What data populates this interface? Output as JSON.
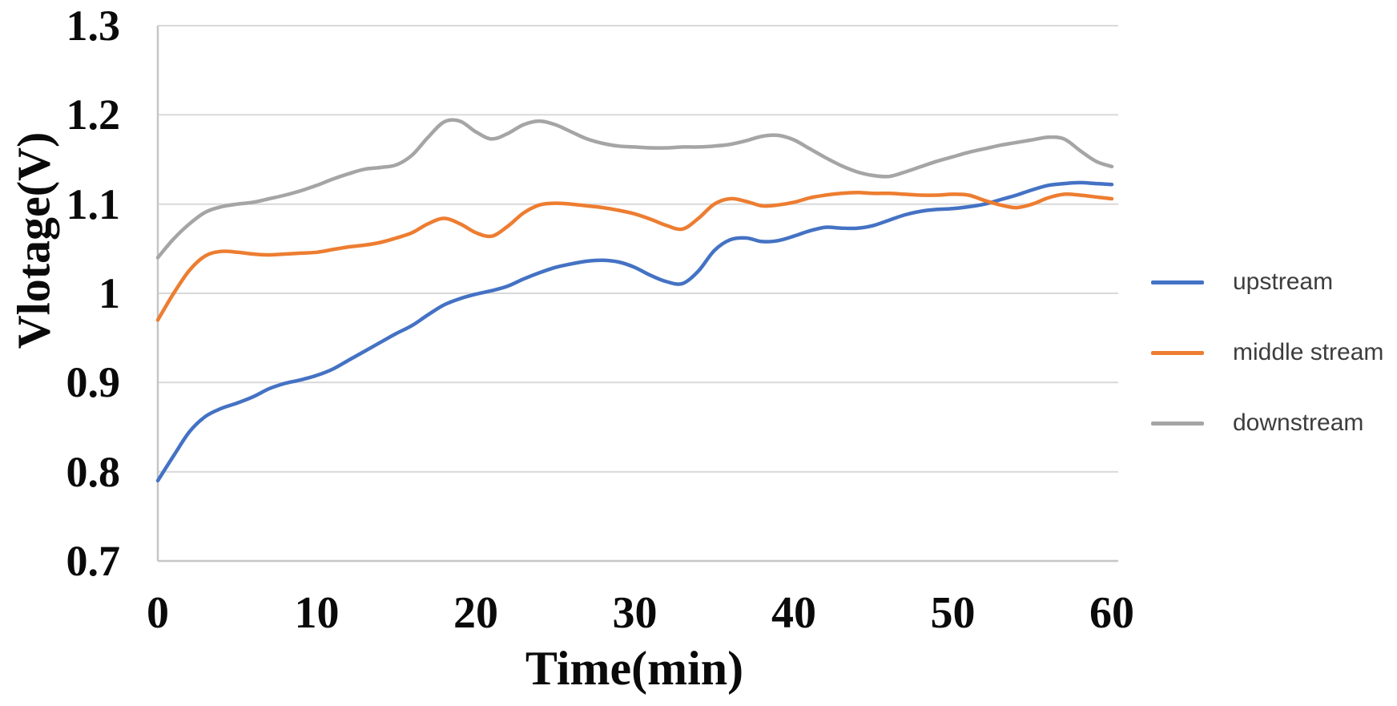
{
  "chart_data": {
    "type": "line",
    "title": "",
    "xlabel": "Time(min)",
    "ylabel": "Vlotage(V)",
    "xlim": [
      0,
      60
    ],
    "ylim": [
      0.7,
      1.3
    ],
    "x_ticks": [
      0,
      10,
      20,
      30,
      40,
      50,
      60
    ],
    "x_tick_labels": [
      "0",
      "10",
      "20",
      "30",
      "40",
      "50",
      "60"
    ],
    "y_ticks": [
      0.7,
      0.8,
      0.9,
      1.0,
      1.1,
      1.2,
      1.3
    ],
    "y_tick_labels": [
      "0.7",
      "0.8",
      "0.9",
      "1",
      "1.1",
      "1.2",
      "1.3"
    ],
    "grid": "horizontal",
    "smooth": true,
    "legend_position": "right",
    "background_color": "#ffffff",
    "gridline_color": "#d9d9d9",
    "axis_line_color": "#c6c6c6",
    "tick_label_color": "#0a0a0a",
    "legend_text_color": "#3d3d3d",
    "series": [
      {
        "name": "upstream",
        "color": "#4472c4",
        "points": [
          [
            0,
            0.79
          ],
          [
            1,
            0.818
          ],
          [
            2,
            0.845
          ],
          [
            3,
            0.862
          ],
          [
            4,
            0.871
          ],
          [
            5,
            0.877
          ],
          [
            6,
            0.884
          ],
          [
            7,
            0.893
          ],
          [
            8,
            0.899
          ],
          [
            9,
            0.903
          ],
          [
            10,
            0.908
          ],
          [
            11,
            0.915
          ],
          [
            12,
            0.925
          ],
          [
            13,
            0.935
          ],
          [
            14,
            0.945
          ],
          [
            15,
            0.955
          ],
          [
            16,
            0.964
          ],
          [
            17,
            0.976
          ],
          [
            18,
            0.987
          ],
          [
            19,
            0.994
          ],
          [
            20,
            0.999
          ],
          [
            21,
            1.003
          ],
          [
            22,
            1.008
          ],
          [
            23,
            1.016
          ],
          [
            24,
            1.023
          ],
          [
            25,
            1.029
          ],
          [
            26,
            1.033
          ],
          [
            27,
            1.036
          ],
          [
            28,
            1.037
          ],
          [
            29,
            1.035
          ],
          [
            30,
            1.029
          ],
          [
            31,
            1.02
          ],
          [
            32,
            1.013
          ],
          [
            33,
            1.011
          ],
          [
            34,
            1.025
          ],
          [
            35,
            1.048
          ],
          [
            36,
            1.06
          ],
          [
            37,
            1.062
          ],
          [
            38,
            1.058
          ],
          [
            39,
            1.059
          ],
          [
            40,
            1.064
          ],
          [
            41,
            1.07
          ],
          [
            42,
            1.074
          ],
          [
            43,
            1.073
          ],
          [
            44,
            1.073
          ],
          [
            45,
            1.076
          ],
          [
            46,
            1.082
          ],
          [
            47,
            1.088
          ],
          [
            48,
            1.092
          ],
          [
            49,
            1.094
          ],
          [
            50,
            1.095
          ],
          [
            51,
            1.097
          ],
          [
            52,
            1.1
          ],
          [
            53,
            1.105
          ],
          [
            54,
            1.11
          ],
          [
            55,
            1.116
          ],
          [
            56,
            1.121
          ],
          [
            57,
            1.123
          ],
          [
            58,
            1.124
          ],
          [
            59,
            1.123
          ],
          [
            60,
            1.122
          ]
        ]
      },
      {
        "name": "middle stream",
        "color": "#ed7d31",
        "points": [
          [
            0,
            0.97
          ],
          [
            1,
            1.0
          ],
          [
            2,
            1.026
          ],
          [
            3,
            1.042
          ],
          [
            4,
            1.047
          ],
          [
            5,
            1.046
          ],
          [
            6,
            1.044
          ],
          [
            7,
            1.043
          ],
          [
            8,
            1.044
          ],
          [
            9,
            1.045
          ],
          [
            10,
            1.046
          ],
          [
            11,
            1.049
          ],
          [
            12,
            1.052
          ],
          [
            13,
            1.054
          ],
          [
            14,
            1.057
          ],
          [
            15,
            1.062
          ],
          [
            16,
            1.068
          ],
          [
            17,
            1.078
          ],
          [
            18,
            1.084
          ],
          [
            19,
            1.078
          ],
          [
            20,
            1.068
          ],
          [
            21,
            1.064
          ],
          [
            22,
            1.075
          ],
          [
            23,
            1.09
          ],
          [
            24,
            1.099
          ],
          [
            25,
            1.101
          ],
          [
            26,
            1.1
          ],
          [
            27,
            1.098
          ],
          [
            28,
            1.096
          ],
          [
            29,
            1.093
          ],
          [
            30,
            1.089
          ],
          [
            31,
            1.083
          ],
          [
            32,
            1.076
          ],
          [
            33,
            1.072
          ],
          [
            34,
            1.084
          ],
          [
            35,
            1.1
          ],
          [
            36,
            1.106
          ],
          [
            37,
            1.103
          ],
          [
            38,
            1.098
          ],
          [
            39,
            1.099
          ],
          [
            40,
            1.102
          ],
          [
            41,
            1.107
          ],
          [
            42,
            1.11
          ],
          [
            43,
            1.112
          ],
          [
            44,
            1.113
          ],
          [
            45,
            1.112
          ],
          [
            46,
            1.112
          ],
          [
            47,
            1.111
          ],
          [
            48,
            1.11
          ],
          [
            49,
            1.11
          ],
          [
            50,
            1.111
          ],
          [
            51,
            1.11
          ],
          [
            52,
            1.104
          ],
          [
            53,
            1.099
          ],
          [
            54,
            1.096
          ],
          [
            55,
            1.1
          ],
          [
            56,
            1.107
          ],
          [
            57,
            1.111
          ],
          [
            58,
            1.11
          ],
          [
            59,
            1.108
          ],
          [
            60,
            1.106
          ]
        ]
      },
      {
        "name": "downstream",
        "color": "#a5a5a5",
        "points": [
          [
            0,
            1.04
          ],
          [
            1,
            1.061
          ],
          [
            2,
            1.078
          ],
          [
            3,
            1.091
          ],
          [
            4,
            1.097
          ],
          [
            5,
            1.1
          ],
          [
            6,
            1.102
          ],
          [
            7,
            1.106
          ],
          [
            8,
            1.11
          ],
          [
            9,
            1.115
          ],
          [
            10,
            1.121
          ],
          [
            11,
            1.128
          ],
          [
            12,
            1.134
          ],
          [
            13,
            1.139
          ],
          [
            14,
            1.141
          ],
          [
            15,
            1.144
          ],
          [
            16,
            1.155
          ],
          [
            17,
            1.175
          ],
          [
            18,
            1.192
          ],
          [
            19,
            1.193
          ],
          [
            20,
            1.181
          ],
          [
            21,
            1.173
          ],
          [
            22,
            1.179
          ],
          [
            23,
            1.189
          ],
          [
            24,
            1.193
          ],
          [
            25,
            1.189
          ],
          [
            26,
            1.181
          ],
          [
            27,
            1.173
          ],
          [
            28,
            1.168
          ],
          [
            29,
            1.165
          ],
          [
            30,
            1.164
          ],
          [
            31,
            1.163
          ],
          [
            32,
            1.163
          ],
          [
            33,
            1.164
          ],
          [
            34,
            1.164
          ],
          [
            35,
            1.165
          ],
          [
            36,
            1.167
          ],
          [
            37,
            1.171
          ],
          [
            38,
            1.176
          ],
          [
            39,
            1.177
          ],
          [
            40,
            1.172
          ],
          [
            41,
            1.162
          ],
          [
            42,
            1.152
          ],
          [
            43,
            1.143
          ],
          [
            44,
            1.136
          ],
          [
            45,
            1.132
          ],
          [
            46,
            1.131
          ],
          [
            47,
            1.136
          ],
          [
            48,
            1.142
          ],
          [
            49,
            1.148
          ],
          [
            50,
            1.153
          ],
          [
            51,
            1.158
          ],
          [
            52,
            1.162
          ],
          [
            53,
            1.166
          ],
          [
            54,
            1.169
          ],
          [
            55,
            1.172
          ],
          [
            56,
            1.175
          ],
          [
            57,
            1.173
          ],
          [
            58,
            1.16
          ],
          [
            59,
            1.148
          ],
          [
            60,
            1.142
          ]
        ]
      }
    ]
  }
}
